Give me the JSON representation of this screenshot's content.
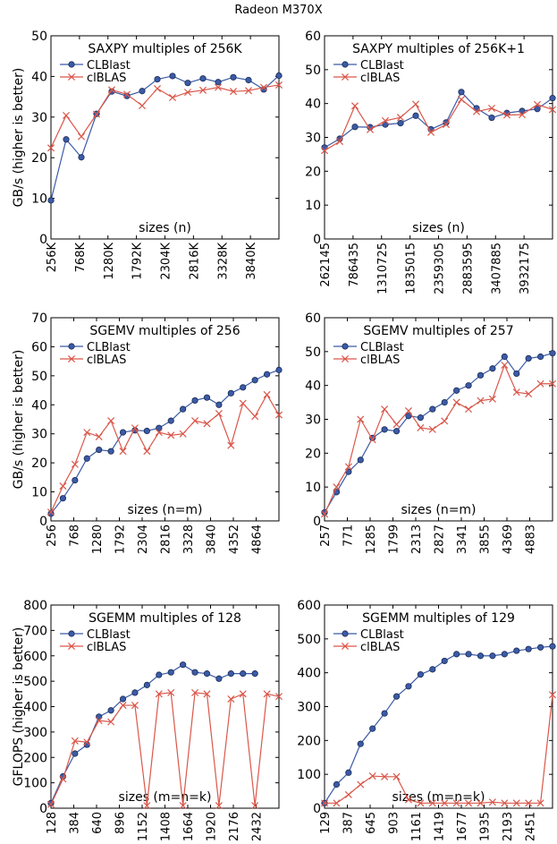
{
  "figure": {
    "suptitle": "Radeon M370X"
  },
  "chart_data": [
    {
      "type": "line",
      "title": "SAXPY multiples of 256K",
      "xlabel": "sizes (n)",
      "ylabel": "GB/s (higher is better)",
      "ylim": [
        0,
        50
      ],
      "yticks": [
        "0",
        "10",
        "20",
        "30",
        "40",
        "50"
      ],
      "xticks": [
        "256K",
        "768K",
        "1280K",
        "1792K",
        "2304K",
        "2816K",
        "3328K",
        "3840K"
      ],
      "legend": "top-left",
      "series": [
        {
          "name": "CLBlast",
          "color": "#3b5ba6",
          "marker": "circle",
          "values": [
            9.5,
            24.5,
            20.1,
            30.8,
            36.3,
            35.2,
            36.4,
            39.3,
            40.1,
            38.4,
            39.5,
            38.6,
            39.8,
            39.1,
            36.8,
            40.2
          ]
        },
        {
          "name": "clBLAS",
          "color": "#d9574a",
          "marker": "x",
          "values": [
            22.4,
            30.4,
            25.2,
            30.7,
            36.7,
            35.6,
            32.8,
            37.0,
            34.8,
            36.1,
            36.6,
            37.3,
            36.3,
            36.5,
            37.3,
            37.9
          ]
        }
      ]
    },
    {
      "type": "line",
      "title": "SAXPY multiples of 256K+1",
      "xlabel": "sizes (n)",
      "ylabel": "",
      "ylim": [
        0,
        60
      ],
      "yticks": [
        "0",
        "10",
        "20",
        "30",
        "40",
        "50",
        "60"
      ],
      "xticks": [
        "262145",
        "786435",
        "1310725",
        "1835015",
        "2359305",
        "2883595",
        "3407885",
        "3932175"
      ],
      "legend": "top-left",
      "series": [
        {
          "name": "CLBlast",
          "color": "#3b5ba6",
          "marker": "circle",
          "values": [
            27.0,
            29.6,
            33.1,
            33.0,
            33.8,
            34.2,
            36.4,
            32.4,
            34.4,
            43.4,
            38.6,
            35.8,
            37.2,
            37.8,
            38.4,
            41.6
          ]
        },
        {
          "name": "clBLAS",
          "color": "#d9574a",
          "marker": "x",
          "values": [
            26.1,
            28.8,
            39.3,
            32.3,
            34.9,
            35.9,
            39.8,
            31.5,
            33.8,
            41.2,
            37.6,
            38.6,
            36.6,
            36.7,
            39.7,
            38.2
          ]
        }
      ]
    },
    {
      "type": "line",
      "title": "SGEMV multiples of 256",
      "xlabel": "sizes (n=m)",
      "ylabel": "GB/s (higher is better)",
      "ylim": [
        0,
        70
      ],
      "yticks": [
        "0",
        "10",
        "20",
        "30",
        "40",
        "50",
        "60",
        "70"
      ],
      "xticks": [
        "256",
        "768",
        "1280",
        "1792",
        "2304",
        "2816",
        "3328",
        "3840",
        "4352",
        "4864"
      ],
      "legend": "top-left",
      "series": [
        {
          "name": "CLBlast",
          "color": "#3b5ba6",
          "marker": "circle",
          "values": [
            2.5,
            7.8,
            14.0,
            21.5,
            24.5,
            24.0,
            30.5,
            31.2,
            31.0,
            32.0,
            34.5,
            38.5,
            41.5,
            42.5,
            40.0,
            44.0,
            46.0,
            48.5,
            50.5,
            52.0
          ]
        },
        {
          "name": "clBLAS",
          "color": "#d9574a",
          "marker": "x",
          "values": [
            3.0,
            12.0,
            19.5,
            30.5,
            29.0,
            34.5,
            24.0,
            32.0,
            24.0,
            30.5,
            29.5,
            30.0,
            34.5,
            33.5,
            37.0,
            26.0,
            40.5,
            36.0,
            43.5,
            36.5
          ]
        }
      ]
    },
    {
      "type": "line",
      "title": "SGEMV multiples of 257",
      "xlabel": "sizes (n=m)",
      "ylabel": "",
      "ylim": [
        0,
        60
      ],
      "yticks": [
        "0",
        "10",
        "20",
        "30",
        "40",
        "50",
        "60"
      ],
      "xticks": [
        "257",
        "771",
        "1285",
        "1799",
        "2313",
        "2827",
        "3341",
        "3855",
        "4369",
        "4883"
      ],
      "legend": "top-left",
      "series": [
        {
          "name": "CLBlast",
          "color": "#3b5ba6",
          "marker": "circle",
          "values": [
            2.5,
            8.5,
            14.5,
            18.0,
            24.5,
            27.0,
            26.5,
            31.0,
            30.5,
            33.0,
            35.0,
            38.5,
            40.0,
            43.0,
            45.0,
            48.5,
            43.5,
            48.0,
            48.5,
            49.5
          ]
        },
        {
          "name": "clBLAS",
          "color": "#d9574a",
          "marker": "x",
          "values": [
            2.0,
            10.0,
            16.0,
            30.0,
            24.0,
            33.0,
            28.5,
            32.5,
            27.5,
            27.0,
            29.5,
            35.0,
            33.0,
            35.5,
            36.0,
            46.0,
            38.0,
            37.5,
            40.5,
            40.5
          ]
        }
      ]
    },
    {
      "type": "line",
      "title": "SGEMM multiples of 128",
      "xlabel": "sizes (m=n=k)",
      "ylabel": "GFLOPS (higher is better)",
      "ylim": [
        0,
        800
      ],
      "yticks": [
        "0",
        "100",
        "200",
        "300",
        "400",
        "500",
        "600",
        "700",
        "800"
      ],
      "xticks": [
        "128",
        "384",
        "640",
        "896",
        "1152",
        "1408",
        "1664",
        "1920",
        "2176",
        "2432"
      ],
      "legend": "top-left",
      "series": [
        {
          "name": "CLBlast",
          "color": "#3b5ba6",
          "marker": "circle",
          "values": [
            20,
            125,
            215,
            250,
            360,
            385,
            430,
            455,
            485,
            525,
            535,
            565,
            535,
            530,
            510,
            530,
            530,
            530
          ]
        },
        {
          "name": "clBLAS",
          "color": "#d9574a",
          "marker": "x",
          "values": [
            15,
            115,
            265,
            260,
            345,
            340,
            405,
            405,
            10,
            450,
            455,
            10,
            455,
            450,
            10,
            430,
            450,
            10,
            450,
            440
          ]
        }
      ]
    },
    {
      "type": "line",
      "title": "SGEMM multiples of 129",
      "xlabel": "sizes (m=n=k)",
      "ylabel": "",
      "ylim": [
        0,
        600
      ],
      "yticks": [
        "0",
        "100",
        "200",
        "300",
        "400",
        "500",
        "600"
      ],
      "xticks": [
        "129",
        "387",
        "645",
        "903",
        "1161",
        "1419",
        "1677",
        "1935",
        "2193",
        "2451"
      ],
      "legend": "top-left",
      "series": [
        {
          "name": "CLBlast",
          "color": "#3b5ba6",
          "marker": "circle",
          "values": [
            15,
            70,
            105,
            190,
            235,
            280,
            330,
            360,
            395,
            410,
            435,
            455,
            455,
            450,
            450,
            455,
            465,
            470,
            475,
            478
          ]
        },
        {
          "name": "clBLAS",
          "color": "#d9574a",
          "marker": "x",
          "values": [
            15,
            15,
            40,
            70,
            95,
            93,
            93,
            25,
            15,
            15,
            15,
            15,
            15,
            15,
            18,
            15,
            15,
            15,
            15,
            335
          ]
        }
      ]
    }
  ]
}
